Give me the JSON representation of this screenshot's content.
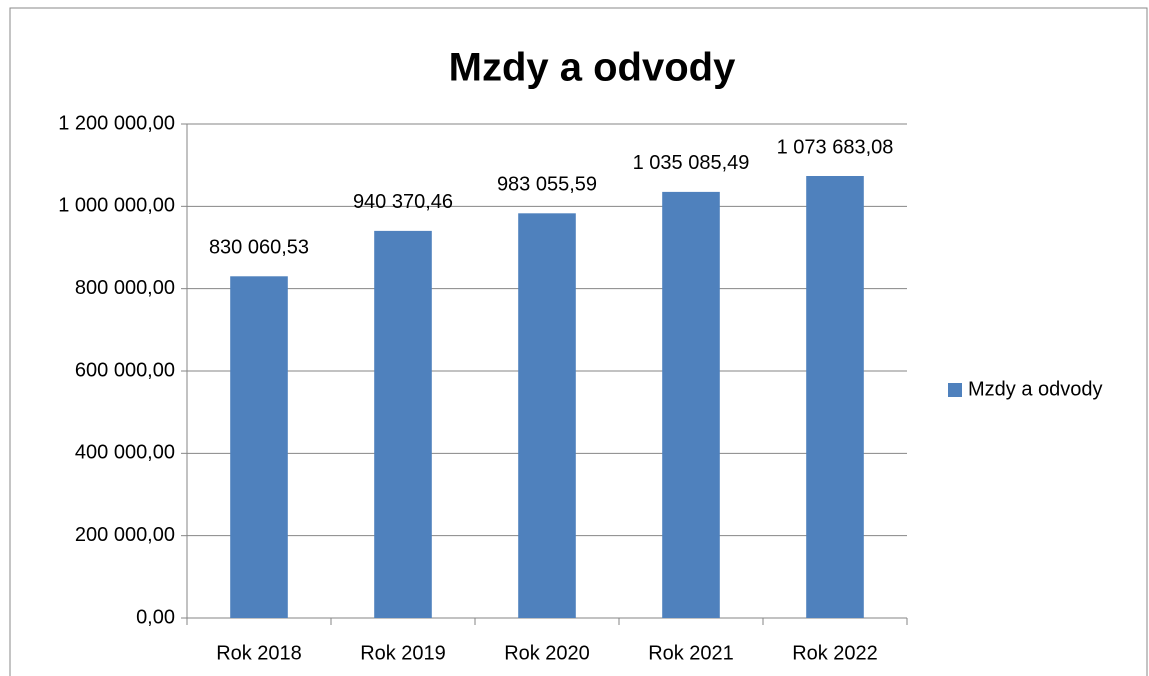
{
  "chart_data": {
    "type": "bar",
    "title": "Mzdy a odvody",
    "categories": [
      "Rok 2018",
      "Rok 2019",
      "Rok 2020",
      "Rok 2021",
      "Rok 2022"
    ],
    "series": [
      {
        "name": "Mzdy a odvody",
        "color": "#4f81bd",
        "values": [
          830060.53,
          940370.46,
          983055.59,
          1035085.49,
          1073683.08
        ],
        "value_labels": [
          "830 060,53",
          "940 370,46",
          "983 055,59",
          "1 035 085,49",
          "1 073 683,08"
        ]
      }
    ],
    "ylim": [
      0,
      1200000
    ],
    "yticks": [
      {
        "value": 0,
        "label": "0,00"
      },
      {
        "value": 200000,
        "label": "200 000,00"
      },
      {
        "value": 400000,
        "label": "400 000,00"
      },
      {
        "value": 600000,
        "label": "600 000,00"
      },
      {
        "value": 800000,
        "label": "800 000,00"
      },
      {
        "value": 1000000,
        "label": "1 000 000,00"
      },
      {
        "value": 1200000,
        "label": "1 200 000,00"
      }
    ],
    "grid": true,
    "legend": "right"
  }
}
